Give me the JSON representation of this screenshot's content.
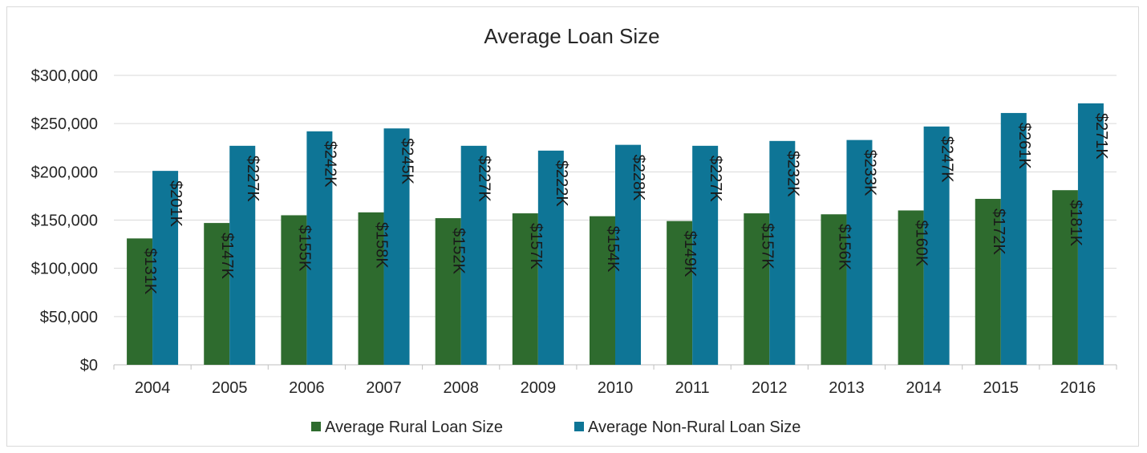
{
  "chart_data": {
    "type": "bar",
    "title": "Average Loan Size",
    "categories": [
      "2004",
      "2005",
      "2006",
      "2007",
      "2008",
      "2009",
      "2010",
      "2011",
      "2012",
      "2013",
      "2014",
      "2015",
      "2016"
    ],
    "series": [
      {
        "name": "Average Rural Loan Size",
        "color": "#2e6b2e",
        "values": [
          131000,
          147000,
          155000,
          158000,
          152000,
          157000,
          154000,
          149000,
          157000,
          156000,
          160000,
          172000,
          181000
        ],
        "labels": [
          "$131K",
          "$147K",
          "$155K",
          "$158K",
          "$152K",
          "$157K",
          "$154K",
          "$149K",
          "$157K",
          "$156K",
          "$160K",
          "$172K",
          "$181K"
        ]
      },
      {
        "name": "Average Non-Rural Loan Size",
        "color": "#0e7596",
        "values": [
          201000,
          227000,
          242000,
          245000,
          227000,
          222000,
          228000,
          227000,
          232000,
          233000,
          247000,
          261000,
          271000
        ],
        "labels": [
          "$201K",
          "$227K",
          "$242K",
          "$245K",
          "$227K",
          "$222K",
          "$228K",
          "$227K",
          "$232K",
          "$233K",
          "$247K",
          "$261K",
          "$271K"
        ]
      }
    ],
    "y_ticks": [
      "$0",
      "$50,000",
      "$100,000",
      "$150,000",
      "$200,000",
      "$250,000",
      "$300,000"
    ],
    "ylim": [
      0,
      300000
    ],
    "xlabel": "",
    "ylabel": "",
    "grid": true,
    "legend": "bottom"
  }
}
